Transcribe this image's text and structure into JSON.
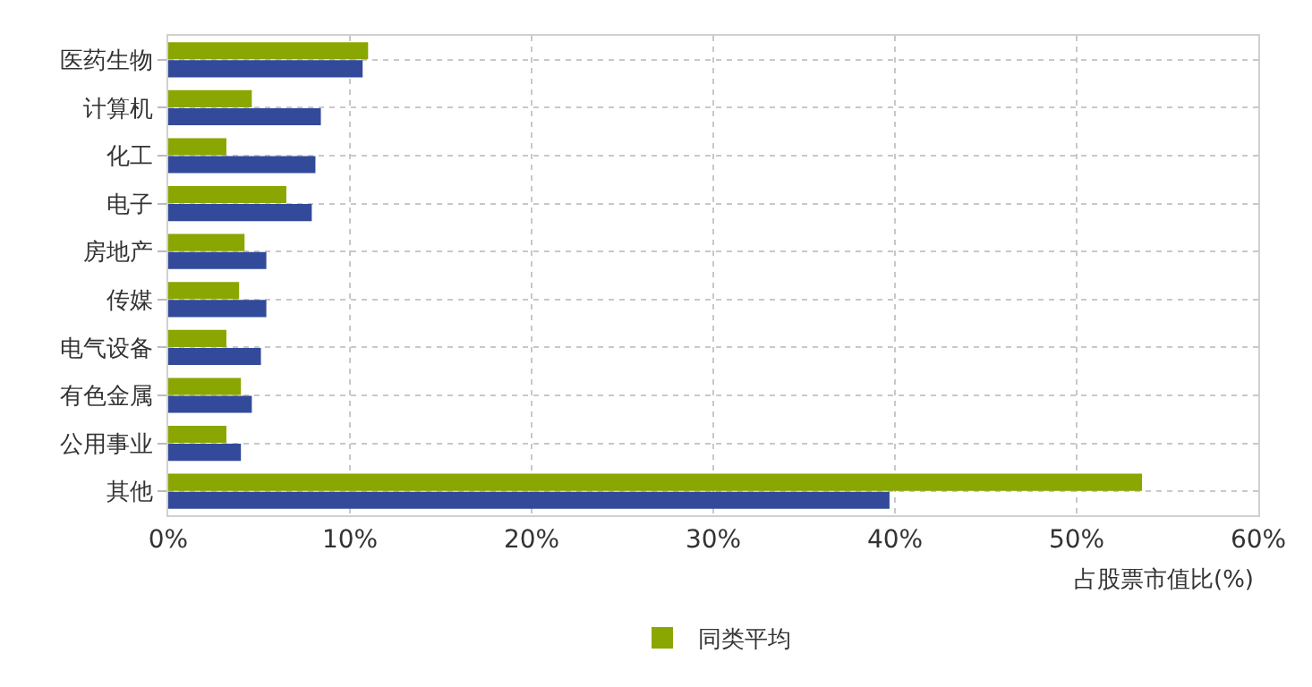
{
  "chart_data": {
    "type": "bar",
    "orientation": "horizontal",
    "xlabel": "占股票市值比(%)",
    "categories": [
      "医药生物",
      "计算机",
      "化工",
      "电子",
      "房地产",
      "传媒",
      "电气设备",
      "有色金属",
      "公用事业",
      "其他"
    ],
    "series": [
      {
        "name": "同类平均",
        "color": "#8aa600",
        "values": [
          11.0,
          4.6,
          3.2,
          6.5,
          4.2,
          3.9,
          3.2,
          4.0,
          3.2,
          53.6
        ]
      },
      {
        "color": "#334a9a",
        "values": [
          10.7,
          8.4,
          8.1,
          7.9,
          5.4,
          5.4,
          5.1,
          4.6,
          4.0,
          39.7
        ]
      }
    ],
    "xlim": [
      0,
      60
    ],
    "xticks": [
      {
        "value": 0,
        "label": "0%"
      },
      {
        "value": 10,
        "label": "10%"
      },
      {
        "value": 20,
        "label": "20%"
      },
      {
        "value": 30,
        "label": "30%"
      },
      {
        "value": 40,
        "label": "40%"
      },
      {
        "value": 50,
        "label": "50%"
      },
      {
        "value": 60,
        "label": "60%"
      }
    ],
    "grid": true,
    "legend": "bottom"
  }
}
